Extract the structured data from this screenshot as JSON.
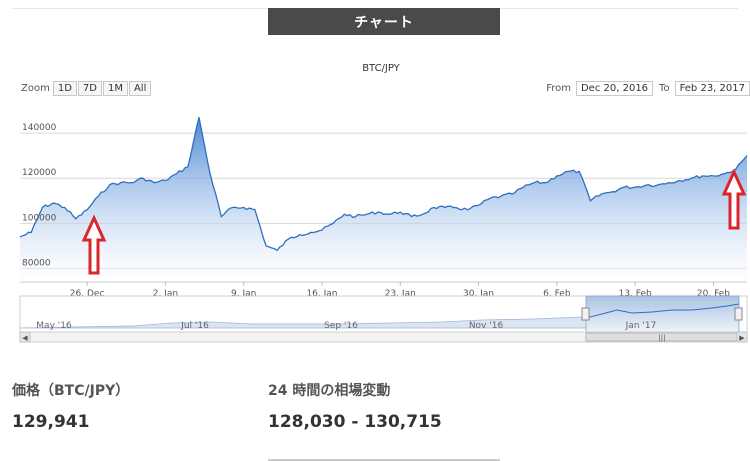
{
  "header": {
    "tab_label": "チャート"
  },
  "toolbar": {
    "zoom_label": "Zoom",
    "zoom_buttons": [
      "1D",
      "7D",
      "1M",
      "All"
    ],
    "from_label": "From",
    "from_value": "Dec 20, 2016",
    "to_label": "To",
    "to_value": "Feb 23, 2017"
  },
  "navigator": {
    "labels": [
      "May '16",
      "Jul '16",
      "Sep '16",
      "Nov '16",
      "Jan '17"
    ],
    "scroll_grip": "|||"
  },
  "stats": {
    "price_label": "価格（BTC/JPY）",
    "price_value": "129,941",
    "range_label": "24 時間の相場変動",
    "range_value": "128,030 - 130,715"
  },
  "colors": {
    "header_bg": "#4a4a4a",
    "line": "#2f6fc0",
    "area_top": "#4a8ad6",
    "area_bottom": "#ffffff",
    "arrow": "#d9262b"
  },
  "annotations": [
    {
      "type": "arrow-up",
      "date": "Dec 26, 2016"
    },
    {
      "type": "arrow-up",
      "date": "Feb 22, 2017"
    }
  ],
  "chart_data": {
    "type": "area",
    "title": "BTC/JPY",
    "x_tick_labels": [
      "26. Dec",
      "2. Jan",
      "9. Jan",
      "16. Jan",
      "23. Jan",
      "30. Jan",
      "6. Feb",
      "13. Feb",
      "20. Feb"
    ],
    "y_tick_labels": [
      "80000",
      "100000",
      "120000",
      "140000"
    ],
    "ylim": [
      74000,
      152000
    ],
    "xlim": [
      "Dec 20, 2016",
      "Feb 23, 2017"
    ],
    "grid": true,
    "series": [
      {
        "x": [
          "Dec 20, 2016",
          "Dec 21, 2016",
          "Dec 22, 2016",
          "Dec 23, 2016",
          "Dec 24, 2016",
          "Dec 25, 2016",
          "Dec 26, 2016",
          "Dec 27, 2016",
          "Dec 28, 2016",
          "Dec 29, 2016",
          "Dec 30, 2016",
          "Dec 31, 2016",
          "Jan 1, 2017",
          "Jan 2, 2017",
          "Jan 3, 2017",
          "Jan 4, 2017",
          "Jan 5, 2017",
          "Jan 6, 2017",
          "Jan 7, 2017",
          "Jan 8, 2017",
          "Jan 9, 2017",
          "Jan 10, 2017",
          "Jan 11, 2017",
          "Jan 12, 2017",
          "Jan 13, 2017",
          "Jan 14, 2017",
          "Jan 15, 2017",
          "Jan 16, 2017",
          "Jan 17, 2017",
          "Jan 18, 2017",
          "Jan 19, 2017",
          "Jan 20, 2017",
          "Jan 21, 2017",
          "Jan 22, 2017",
          "Jan 23, 2017",
          "Jan 24, 2017",
          "Jan 25, 2017",
          "Jan 26, 2017",
          "Jan 27, 2017",
          "Jan 28, 2017",
          "Jan 29, 2017",
          "Jan 30, 2017",
          "Jan 31, 2017",
          "Feb 1, 2017",
          "Feb 2, 2017",
          "Feb 3, 2017",
          "Feb 4, 2017",
          "Feb 5, 2017",
          "Feb 6, 2017",
          "Feb 7, 2017",
          "Feb 8, 2017",
          "Feb 9, 2017",
          "Feb 10, 2017",
          "Feb 11, 2017",
          "Feb 12, 2017",
          "Feb 13, 2017",
          "Feb 14, 2017",
          "Feb 15, 2017",
          "Feb 16, 2017",
          "Feb 17, 2017",
          "Feb 18, 2017",
          "Feb 19, 2017",
          "Feb 20, 2017",
          "Feb 21, 2017",
          "Feb 22, 2017",
          "Feb 23, 2017"
        ],
        "y": [
          94000,
          96000,
          107000,
          109000,
          107000,
          102000,
          106000,
          112000,
          117000,
          118000,
          118000,
          120000,
          118000,
          119000,
          122000,
          125000,
          147000,
          122000,
          103000,
          107000,
          107000,
          106000,
          90000,
          88000,
          93000,
          95000,
          96000,
          97000,
          100000,
          104000,
          103000,
          104000,
          105000,
          104000,
          105000,
          103000,
          104000,
          107000,
          107000,
          107000,
          106000,
          108000,
          111000,
          112000,
          113000,
          116000,
          118000,
          118000,
          121000,
          123000,
          123000,
          110000,
          113000,
          114000,
          116000,
          116000,
          117000,
          117000,
          118000,
          119000,
          120000,
          121000,
          121000,
          122000,
          124000,
          130000
        ]
      }
    ]
  }
}
